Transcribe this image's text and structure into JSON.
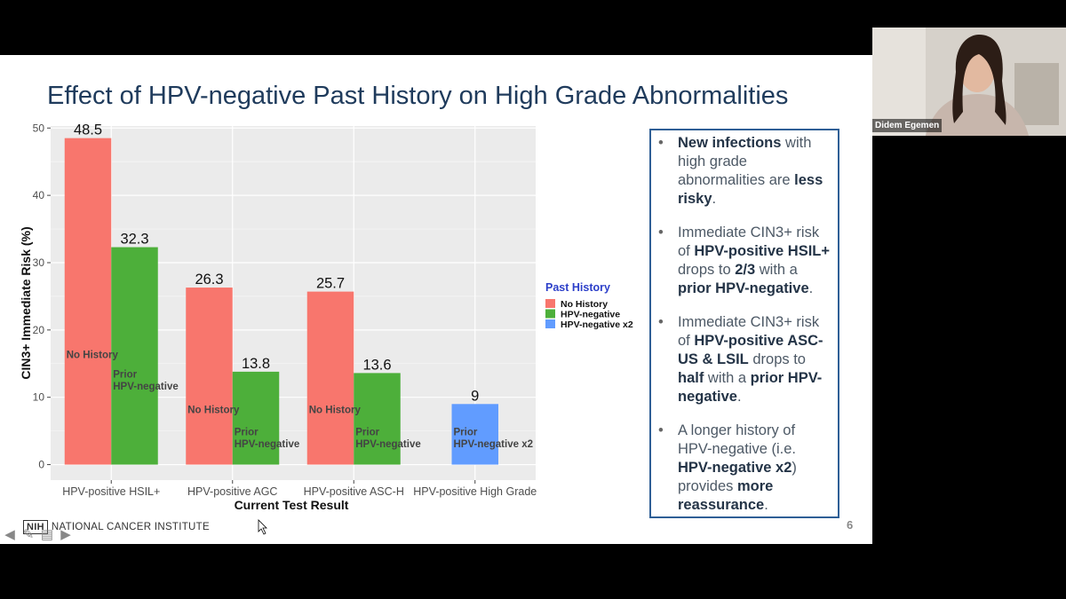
{
  "slide": {
    "title": "Effect of HPV-negative Past History on High Grade Abnormalities",
    "page_number": "6",
    "footer_logo_box": "NIH",
    "footer_logo_text": "NATIONAL CANCER INSTITUTE"
  },
  "bullets": [
    [
      {
        "t": "New infections",
        "b": true
      },
      {
        "t": " with high grade abnormalities are "
      },
      {
        "t": "less risky",
        "b": true
      },
      {
        "t": "."
      }
    ],
    [
      {
        "t": "Immediate CIN3+ risk of "
      },
      {
        "t": "HPV-positive HSIL+",
        "b": true
      },
      {
        "t": " drops to "
      },
      {
        "t": "2/3",
        "b": true
      },
      {
        "t": " with a "
      },
      {
        "t": "prior HPV-negative",
        "b": true
      },
      {
        "t": "."
      }
    ],
    [
      {
        "t": "Immediate CIN3+ risk of "
      },
      {
        "t": "HPV-positive ASC-US & LSIL",
        "b": true
      },
      {
        "t": " drops to "
      },
      {
        "t": "half",
        "b": true
      },
      {
        "t": " with a "
      },
      {
        "t": "prior HPV-negative",
        "b": true
      },
      {
        "t": "."
      }
    ],
    [
      {
        "t": "A longer history of HPV-negative (i.e. "
      },
      {
        "t": "HPV-negative x2",
        "b": true
      },
      {
        "t": ") provides "
      },
      {
        "t": "more reassurance",
        "b": true
      },
      {
        "t": "."
      }
    ]
  ],
  "video": {
    "participant_name": "Didem Egemen"
  },
  "chart_data": {
    "type": "bar",
    "xlabel": "Current Test Result",
    "ylabel": "CIN3+ Immediate Risk (%)",
    "ylim": [
      0,
      50
    ],
    "yticks": [
      0,
      10,
      20,
      30,
      40,
      50
    ],
    "grid": true,
    "legend": {
      "title": "Past History",
      "position": "right"
    },
    "categories": [
      "HPV-positive HSIL+",
      "HPV-positive AGC",
      "HPV-positive ASC-H",
      "HPV-positive High Grade"
    ],
    "series": [
      {
        "name": "No History",
        "color": "#f8766d",
        "values": [
          48.5,
          26.3,
          25.7,
          null
        ]
      },
      {
        "name": "HPV-negative",
        "color": "#4daf3a",
        "values": [
          32.3,
          13.8,
          13.6,
          null
        ]
      },
      {
        "name": "HPV-negative x2",
        "color": "#619cff",
        "values": [
          null,
          null,
          null,
          9
        ]
      }
    ],
    "bar_labels": [
      {
        "category": 0,
        "series": 0,
        "lines": [
          "No History"
        ]
      },
      {
        "category": 0,
        "series": 1,
        "lines": [
          "Prior",
          "HPV-negative"
        ]
      },
      {
        "category": 1,
        "series": 0,
        "lines": [
          "No History"
        ]
      },
      {
        "category": 1,
        "series": 1,
        "lines": [
          "Prior",
          "HPV-negative"
        ]
      },
      {
        "category": 2,
        "series": 0,
        "lines": [
          "No History"
        ]
      },
      {
        "category": 2,
        "series": 1,
        "lines": [
          "Prior",
          "HPV-negative"
        ]
      },
      {
        "category": 3,
        "series": 2,
        "lines": [
          "Prior",
          "HPV-negative x2"
        ]
      }
    ]
  }
}
